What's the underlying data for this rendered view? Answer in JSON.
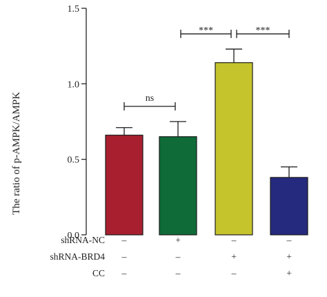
{
  "chart_data": {
    "type": "bar",
    "title": "",
    "xlabel": "",
    "ylabel": "The ratio of p-AMPK/AMPK",
    "ylim": [
      0,
      1.5
    ],
    "yticks": [
      "0.0",
      "0.5",
      "1.0",
      "1.5"
    ],
    "grid": false,
    "bars": [
      {
        "value": 0.66,
        "error": 0.05,
        "color": "#a8202f"
      },
      {
        "value": 0.65,
        "error": 0.1,
        "color": "#0f6b38"
      },
      {
        "value": 1.14,
        "error": 0.09,
        "color": "#c6c42c"
      },
      {
        "value": 0.38,
        "error": 0.07,
        "color": "#252a7e"
      }
    ],
    "conditions": [
      {
        "label": "shRNA-NC",
        "marks": [
          "–",
          "+",
          "–",
          "–"
        ]
      },
      {
        "label": "shRNA-BRD4",
        "marks": [
          "–",
          "–",
          "+",
          "+"
        ]
      },
      {
        "label": "CC",
        "marks": [
          "–",
          "–",
          "–",
          "+"
        ]
      }
    ],
    "significance": [
      {
        "from": 0,
        "to": 1,
        "label": "ns"
      },
      {
        "from": 1,
        "to": 2,
        "label": "***"
      },
      {
        "from": 2,
        "to": 3,
        "label": "***"
      }
    ]
  }
}
